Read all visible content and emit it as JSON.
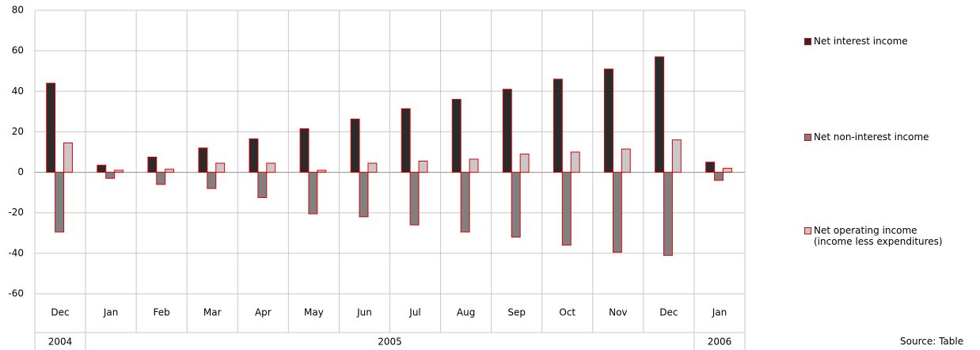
{
  "chart_data": {
    "type": "bar",
    "categories": [
      "Dec",
      "Jan",
      "Feb",
      "Mar",
      "Apr",
      "May",
      "Jun",
      "Jul",
      "Aug",
      "Sep",
      "Oct",
      "Nov",
      "Dec",
      "Jan"
    ],
    "category_groups": [
      {
        "label": "2004",
        "count": 1
      },
      {
        "label": "2005",
        "count": 12
      },
      {
        "label": "2006",
        "count": 1
      }
    ],
    "series": [
      {
        "name": "Net interest income",
        "color": "#2b2b2b",
        "values": [
          44,
          3.5,
          7.5,
          12,
          16.5,
          21.5,
          26.3,
          31.4,
          36,
          41,
          46,
          51,
          57,
          5
        ]
      },
      {
        "name": "Net non-interest income",
        "color": "#808080",
        "values": [
          -29.5,
          -3,
          -6,
          -8,
          -12.5,
          -20.5,
          -22,
          -26,
          -29.5,
          -32,
          -36,
          -39.5,
          -41,
          -4
        ]
      },
      {
        "name": "Net operating income\n(income less expenditures)",
        "color": "#c8c8c8",
        "values": [
          14.5,
          1,
          1.5,
          4.5,
          4.5,
          1,
          4.5,
          5.5,
          6.5,
          9,
          10,
          11.5,
          16,
          2
        ]
      }
    ],
    "bar_edge_color": "#e00000",
    "ylim": [
      -60,
      80
    ],
    "yticks": [
      -60,
      -40,
      -20,
      0,
      20,
      40,
      60,
      80
    ],
    "grid": true,
    "legend": "right",
    "source": "Source: Table"
  }
}
